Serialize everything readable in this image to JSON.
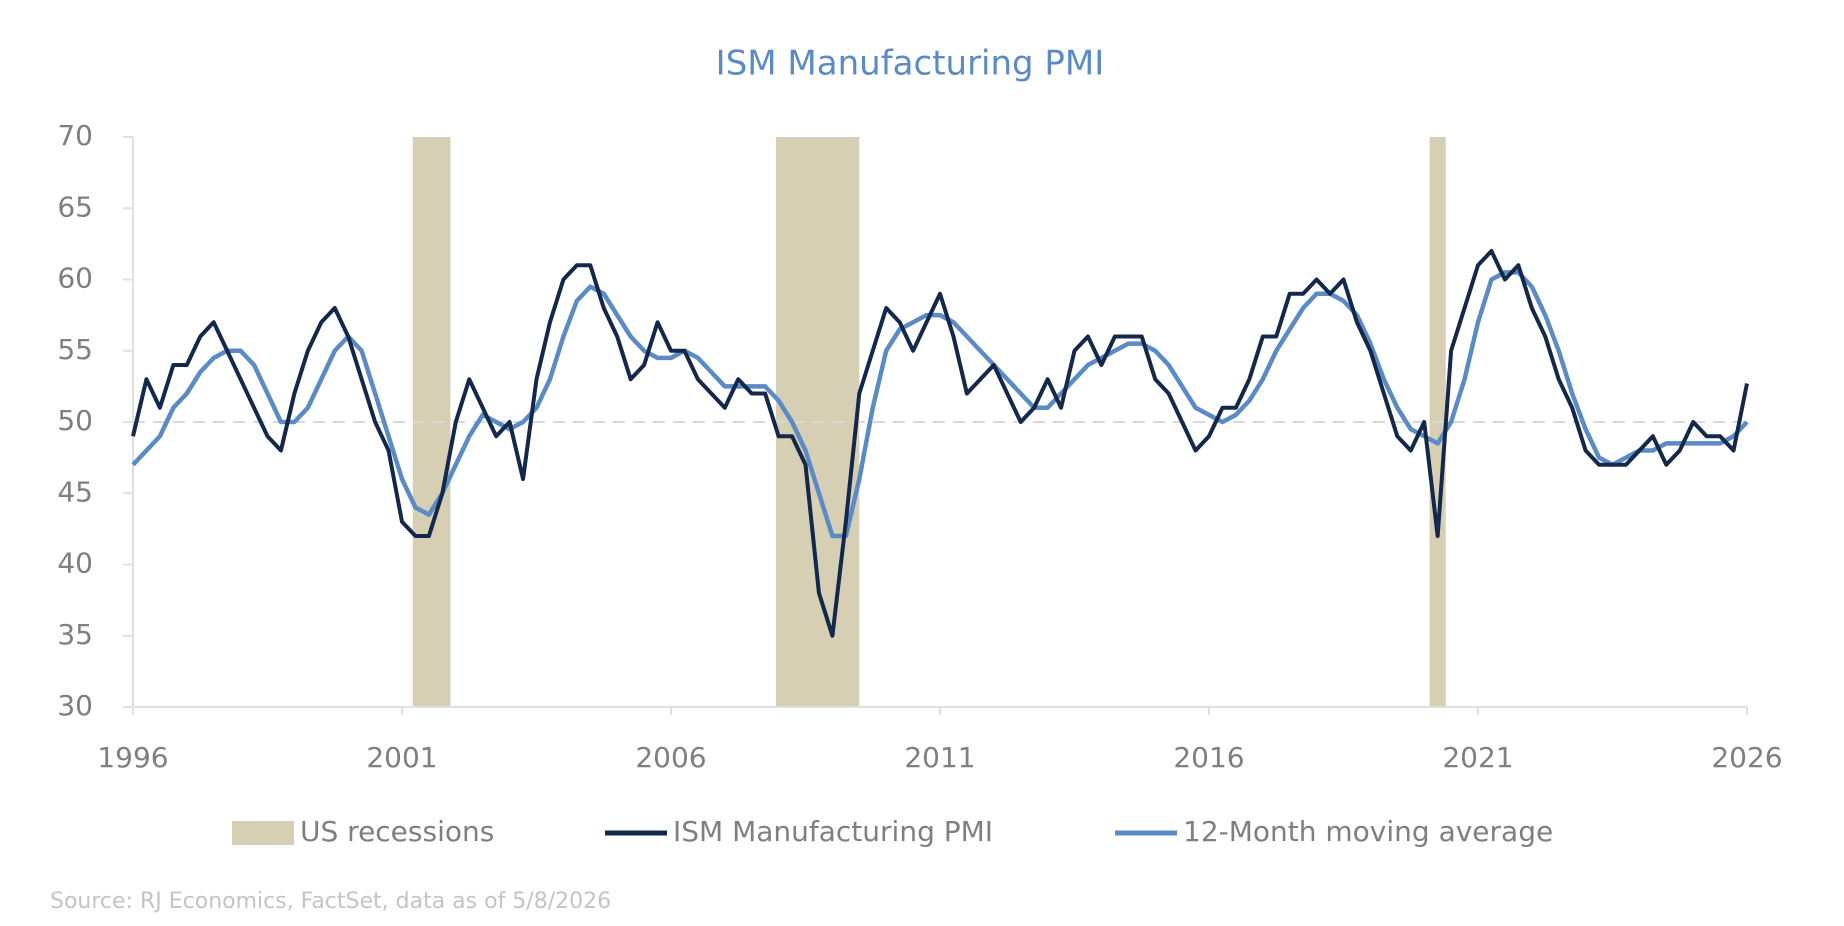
{
  "chart_data": {
    "type": "line",
    "title": "ISM Manufacturing PMI",
    "source": "Source: RJ Economics, FactSet, data as of 5/8/2026",
    "xlim": [
      1996,
      2026
    ],
    "xticks": [
      1996,
      2001,
      2006,
      2011,
      2016,
      2021,
      2026
    ],
    "ylim": [
      30,
      70
    ],
    "yticks": [
      30,
      35,
      40,
      45,
      50,
      55,
      60,
      65,
      70
    ],
    "reference_line": 50,
    "recessions": {
      "name": "US recessions",
      "color": "#d7cfb4",
      "spans": [
        [
          2001.2,
          2001.9
        ],
        [
          2007.95,
          2009.5
        ],
        [
          2020.1,
          2020.4
        ]
      ]
    },
    "x": [
      1996,
      1996.25,
      1996.5,
      1996.75,
      1997,
      1997.25,
      1997.5,
      1997.75,
      1998,
      1998.25,
      1998.5,
      1998.75,
      1999,
      1999.25,
      1999.5,
      1999.75,
      2000,
      2000.25,
      2000.5,
      2000.75,
      2001,
      2001.25,
      2001.5,
      2001.75,
      2002,
      2002.25,
      2002.5,
      2002.75,
      2003,
      2003.25,
      2003.5,
      2003.75,
      2004,
      2004.25,
      2004.5,
      2004.75,
      2005,
      2005.25,
      2005.5,
      2005.75,
      2006,
      2006.25,
      2006.5,
      2006.75,
      2007,
      2007.25,
      2007.5,
      2007.75,
      2008,
      2008.25,
      2008.5,
      2008.75,
      2009,
      2009.25,
      2009.5,
      2009.75,
      2010,
      2010.25,
      2010.5,
      2010.75,
      2011,
      2011.25,
      2011.5,
      2011.75,
      2012,
      2012.25,
      2012.5,
      2012.75,
      2013,
      2013.25,
      2013.5,
      2013.75,
      2014,
      2014.25,
      2014.5,
      2014.75,
      2015,
      2015.25,
      2015.5,
      2015.75,
      2016,
      2016.25,
      2016.5,
      2016.75,
      2017,
      2017.25,
      2017.5,
      2017.75,
      2018,
      2018.25,
      2018.5,
      2018.75,
      2019,
      2019.25,
      2019.5,
      2019.75,
      2020,
      2020.25,
      2020.5,
      2020.75,
      2021,
      2021.25,
      2021.5,
      2021.75,
      2022,
      2022.25,
      2022.5,
      2022.75,
      2023,
      2023.25,
      2023.5,
      2023.75,
      2024,
      2024.25,
      2024.5,
      2024.75,
      2025,
      2025.25,
      2025.5,
      2025.75,
      2026
    ],
    "series": [
      {
        "name": "ISM Manufacturing PMI",
        "color": "#13284b",
        "values": [
          49,
          53,
          51,
          54,
          54,
          56,
          57,
          55,
          53,
          51,
          49,
          48,
          52,
          55,
          57,
          58,
          56,
          53,
          50,
          48,
          43,
          42,
          42,
          45,
          50,
          53,
          51,
          49,
          50,
          46,
          53,
          57,
          60,
          61,
          61,
          58,
          56,
          53,
          54,
          57,
          55,
          55,
          53,
          52,
          51,
          53,
          52,
          52,
          49,
          49,
          47,
          38,
          35,
          43,
          52,
          55,
          58,
          57,
          55,
          57,
          59,
          56,
          52,
          53,
          54,
          52,
          50,
          51,
          53,
          51,
          55,
          56,
          54,
          56,
          56,
          56,
          53,
          52,
          50,
          48,
          49,
          51,
          51,
          53,
          56,
          56,
          59,
          59,
          60,
          59,
          60,
          57,
          55,
          52,
          49,
          48,
          50,
          42,
          55,
          58,
          61,
          62,
          60,
          61,
          58,
          56,
          53,
          51,
          48,
          47,
          47,
          47,
          48,
          49,
          47,
          48,
          50,
          49,
          49,
          48,
          52.7
        ]
      },
      {
        "name": "12-Month moving average",
        "color": "#5b8bc4",
        "values": [
          47,
          48,
          49,
          51,
          52,
          53.5,
          54.5,
          55,
          55,
          54,
          52,
          50,
          50,
          51,
          53,
          55,
          56,
          55,
          52,
          49,
          46,
          44,
          43.5,
          45,
          47,
          49,
          50.5,
          50,
          49.5,
          50,
          51,
          53,
          56,
          58.5,
          59.5,
          59,
          57.5,
          56,
          55,
          54.5,
          54.5,
          55,
          54.5,
          53.5,
          52.5,
          52.5,
          52.5,
          52.5,
          51.5,
          50,
          48,
          45,
          42,
          42,
          46,
          51,
          55,
          56.5,
          57,
          57.5,
          57.5,
          57,
          56,
          55,
          54,
          53,
          52,
          51,
          51,
          52,
          53,
          54,
          54.5,
          55,
          55.5,
          55.5,
          55,
          54,
          52.5,
          51,
          50.5,
          50,
          50.5,
          51.5,
          53,
          55,
          56.5,
          58,
          59,
          59,
          58.5,
          57.5,
          55.5,
          53,
          51,
          49.5,
          49,
          48.5,
          50,
          53,
          57,
          60,
          60.5,
          60.5,
          59.5,
          57.5,
          55,
          52,
          49.5,
          47.5,
          47,
          47.5,
          48,
          48,
          48.5,
          48.5,
          48.5,
          48.5,
          48.5,
          49,
          50
        ]
      }
    ]
  }
}
